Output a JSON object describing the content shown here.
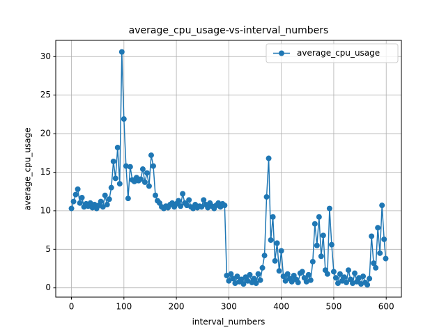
{
  "chart_data": {
    "type": "line",
    "title": "average_cpu_usage-vs-interval_numbers",
    "x_label": "interval_numbers",
    "y_label": "average_cpu_usage",
    "x": [
      0,
      4,
      8,
      12,
      16,
      20,
      24,
      28,
      32,
      36,
      40,
      44,
      48,
      52,
      56,
      60,
      64,
      68,
      72,
      76,
      80,
      84,
      88,
      92,
      96,
      100,
      104,
      108,
      112,
      116,
      120,
      124,
      128,
      132,
      136,
      140,
      144,
      148,
      152,
      156,
      160,
      164,
      168,
      172,
      176,
      180,
      184,
      188,
      192,
      196,
      200,
      204,
      208,
      212,
      216,
      220,
      224,
      228,
      232,
      236,
      240,
      244,
      248,
      252,
      256,
      260,
      264,
      268,
      272,
      276,
      280,
      284,
      288,
      292,
      296,
      300,
      304,
      308,
      312,
      316,
      320,
      324,
      328,
      332,
      336,
      340,
      344,
      348,
      352,
      356,
      360,
      364,
      368,
      372,
      376,
      380,
      384,
      388,
      392,
      396,
      400,
      404,
      408,
      412,
      416,
      420,
      424,
      428,
      432,
      436,
      440,
      444,
      448,
      452,
      456,
      460,
      464,
      468,
      472,
      476,
      480,
      484,
      488,
      492,
      496,
      500,
      504,
      508,
      512,
      516,
      520,
      524,
      528,
      532,
      536,
      540,
      544,
      548,
      552,
      556,
      560,
      564,
      568,
      572,
      576,
      580,
      584,
      588,
      592,
      596,
      599
    ],
    "series": [
      {
        "name": "average_cpu_usage",
        "color": "#1f77b4",
        "values": [
          10.3,
          11.2,
          12.1,
          12.8,
          11.0,
          11.7,
          10.5,
          10.9,
          10.6,
          11.0,
          10.4,
          10.8,
          10.3,
          10.7,
          11.2,
          10.5,
          12.0,
          10.8,
          11.5,
          13.0,
          16.4,
          14.2,
          18.2,
          13.5,
          30.6,
          21.9,
          15.8,
          11.6,
          15.7,
          14.0,
          13.8,
          14.3,
          13.9,
          14.1,
          15.4,
          13.7,
          14.9,
          13.2,
          17.2,
          15.8,
          12.0,
          11.3,
          11.0,
          10.5,
          10.3,
          10.6,
          10.4,
          10.8,
          11.0,
          10.5,
          10.9,
          11.3,
          10.6,
          12.2,
          11.0,
          10.7,
          11.4,
          10.5,
          10.3,
          10.8,
          10.4,
          10.6,
          10.5,
          11.4,
          10.8,
          10.4,
          11.0,
          10.6,
          10.3,
          10.7,
          11.0,
          10.5,
          10.9,
          10.7,
          1.6,
          0.9,
          1.8,
          1.2,
          0.6,
          1.5,
          0.8,
          1.1,
          0.5,
          1.4,
          0.9,
          1.7,
          0.7,
          1.2,
          0.6,
          1.8,
          1.0,
          2.6,
          4.2,
          11.8,
          16.8,
          6.2,
          9.2,
          3.5,
          5.8,
          2.2,
          4.8,
          1.5,
          0.9,
          1.8,
          1.2,
          0.8,
          1.6,
          1.1,
          0.7,
          1.9,
          2.1,
          1.3,
          0.8,
          1.7,
          1.0,
          3.4,
          8.3,
          5.5,
          9.2,
          4.1,
          6.8,
          2.3,
          1.8,
          10.3,
          5.6,
          2.1,
          1.3,
          0.6,
          1.8,
          0.9,
          1.4,
          0.7,
          2.3,
          1.1,
          0.6,
          1.9,
          0.8,
          1.3,
          0.5,
          1.5,
          0.7,
          0.4,
          1.2,
          6.7,
          3.2,
          2.6,
          7.8,
          4.5,
          10.7,
          6.3,
          3.8
        ]
      }
    ],
    "xlim": [
      -29.95,
      628.95
    ],
    "ylim": [
      -1.2,
      32.1
    ],
    "xticks": [
      0,
      100,
      200,
      300,
      400,
      500,
      600
    ],
    "yticks": [
      0,
      5,
      10,
      15,
      20,
      25,
      30
    ],
    "grid": true,
    "legend": "upper-right"
  }
}
